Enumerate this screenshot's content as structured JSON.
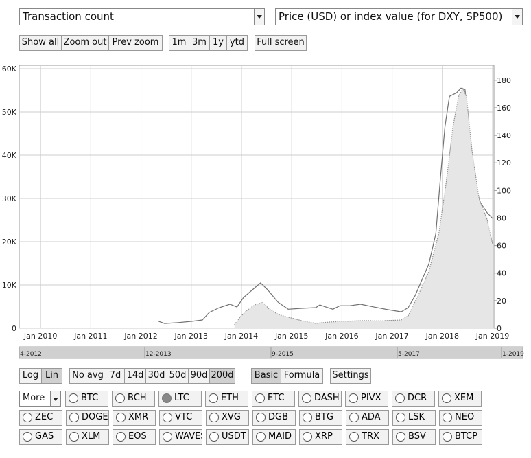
{
  "selectors": {
    "metric": "Transaction count",
    "price": "Price (USD) or index value (for DXY, SP500)"
  },
  "zoom_buttons": [
    "Show all",
    "Zoom out",
    "Prev zoom"
  ],
  "range_buttons": [
    "1m",
    "3m",
    "1y",
    "ytd"
  ],
  "full_screen": "Full screen",
  "chart_data": {
    "type": "line",
    "xlim": [
      2009.575,
      2019.027
    ],
    "xticks": [
      {
        "value": 2010,
        "label": "Jan 2010"
      },
      {
        "value": 2011,
        "label": "Jan 2011"
      },
      {
        "value": 2012,
        "label": "Jan 2012"
      },
      {
        "value": 2013,
        "label": "Jan 2013"
      },
      {
        "value": 2014,
        "label": "Jan 2014"
      },
      {
        "value": 2015,
        "label": "Jan 2015"
      },
      {
        "value": 2016,
        "label": "Jan 2016"
      },
      {
        "value": 2017,
        "label": "Jan 2017"
      },
      {
        "value": 2018,
        "label": "Jan 2018"
      },
      {
        "value": 2019,
        "label": "Jan 2019"
      }
    ],
    "ylim": [
      0,
      60000
    ],
    "yticks": [
      0,
      {
        "value": 10000,
        "label": "10K"
      },
      {
        "value": 20000,
        "label": "20K"
      },
      {
        "value": 30000,
        "label": "30K"
      },
      {
        "value": 40000,
        "label": "40K"
      },
      {
        "value": 50000,
        "label": "50K"
      },
      {
        "value": 60000,
        "label": "60K"
      }
    ],
    "y2lim": [
      0,
      188.4
    ],
    "y2ticks": [
      0,
      20,
      40,
      60,
      80,
      100,
      120,
      140,
      160,
      180
    ],
    "grid": true,
    "series": [
      {
        "color": "#707070",
        "axis": "y",
        "style": "solid",
        "x": [
          2012.35,
          2012.47,
          2012.74,
          2013.02,
          2013.22,
          2013.36,
          2013.56,
          2013.77,
          2013.91,
          2014.04,
          2014.25,
          2014.38,
          2014.52,
          2014.73,
          2014.93,
          2015.2,
          2015.48,
          2015.56,
          2015.68,
          2015.82,
          2015.96,
          2016.16,
          2016.37,
          2016.64,
          2016.91,
          2017.18,
          2017.32,
          2017.46,
          2017.59,
          2017.73,
          2017.87,
          2017.96,
          2018.05,
          2018.14,
          2018.28,
          2018.37,
          2018.45,
          2018.55,
          2018.65,
          2018.76,
          2018.89,
          2019.0
        ],
        "values": [
          1600,
          1100,
          1300,
          1600,
          1900,
          3650,
          4760,
          5550,
          4900,
          7100,
          9200,
          10500,
          8900,
          6000,
          4400,
          4600,
          4760,
          5400,
          4900,
          4400,
          5200,
          5200,
          5550,
          4900,
          4300,
          3800,
          4760,
          7600,
          11100,
          14800,
          21900,
          34600,
          46500,
          53600,
          54400,
          55500,
          55200,
          44100,
          33000,
          29000,
          26700,
          25400
        ]
      },
      {
        "color": "#909090",
        "fill": "#e6e6e6",
        "axis": "y2",
        "style": "dotted",
        "x": [
          2013.86,
          2013.97,
          2014.11,
          2014.27,
          2014.42,
          2014.55,
          2014.73,
          2014.93,
          2015.2,
          2015.48,
          2015.75,
          2016.02,
          2016.43,
          2016.84,
          2017.18,
          2017.32,
          2017.52,
          2017.73,
          2017.93,
          2018.07,
          2018.21,
          2018.32,
          2018.41,
          2018.48,
          2018.59,
          2018.73,
          2018.89,
          2019.0
        ],
        "values": [
          2.5,
          8,
          13,
          17,
          19,
          14,
          10,
          8,
          5.5,
          3.5,
          4.5,
          5,
          5.5,
          5.5,
          6,
          9,
          24,
          41,
          69,
          104,
          146,
          168,
          174,
          168,
          129,
          94,
          79,
          61
        ]
      }
    ]
  },
  "navigator": [
    "4-2012",
    "12-2013",
    "9-2015",
    "5-2017",
    "1-2019"
  ],
  "scale_buttons": {
    "items": [
      "Log",
      "Lin"
    ],
    "selected": 1
  },
  "avg_buttons": {
    "items": [
      "No avg",
      "7d",
      "14d",
      "30d",
      "50d",
      "90d",
      "200d"
    ],
    "selected": 6
  },
  "mode_buttons": {
    "items": [
      "Basic",
      "Formula"
    ],
    "selected": 0
  },
  "settings": "Settings",
  "more": "More",
  "coins": {
    "selected": "LTC",
    "rows": [
      [
        "BTC",
        "BCH",
        "LTC",
        "ETH",
        "ETC",
        "DASH",
        "PIVX",
        "DCR",
        "XEM"
      ],
      [
        "ZEC",
        "DOGE",
        "XMR",
        "VTC",
        "XVG",
        "DGB",
        "BTG",
        "ADA",
        "LSK",
        "NEO"
      ],
      [
        "GAS",
        "XLM",
        "EOS",
        "WAVES",
        "USDT",
        "MAID",
        "XRP",
        "TRX",
        "BSV",
        "BTCP"
      ]
    ]
  }
}
